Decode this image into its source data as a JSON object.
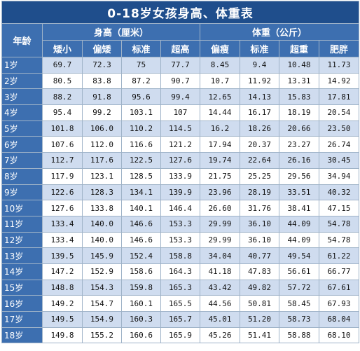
{
  "title": "0-18岁女孩身高、体重表",
  "headers": {
    "age": "年龄",
    "height_group": "身高（厘米）",
    "weight_group": "体重（公斤）",
    "height_cols": [
      "矮小",
      "偏矮",
      "标准",
      "超高"
    ],
    "weight_cols": [
      "偏瘦",
      "标准",
      "超重",
      "肥胖"
    ]
  },
  "rows": [
    {
      "age": "1岁",
      "h": [
        "69.7",
        "72.3",
        "75",
        "77.7"
      ],
      "w": [
        "8.45",
        "9.4",
        "10.48",
        "11.73"
      ]
    },
    {
      "age": "2岁",
      "h": [
        "80.5",
        "83.8",
        "87.2",
        "90.7"
      ],
      "w": [
        "10.7",
        "11.92",
        "13.31",
        "14.92"
      ]
    },
    {
      "age": "3岁",
      "h": [
        "88.2",
        "91.8",
        "95.6",
        "99.4"
      ],
      "w": [
        "12.65",
        "14.13",
        "15.83",
        "17.81"
      ]
    },
    {
      "age": "4岁",
      "h": [
        "95.4",
        "99.2",
        "103.1",
        "107"
      ],
      "w": [
        "14.44",
        "16.17",
        "18.19",
        "20.54"
      ]
    },
    {
      "age": "5岁",
      "h": [
        "101.8",
        "106.0",
        "110.2",
        "114.5"
      ],
      "w": [
        "16.2",
        "18.26",
        "20.66",
        "23.50"
      ]
    },
    {
      "age": "6岁",
      "h": [
        "107.6",
        "112.0",
        "116.6",
        "121.2"
      ],
      "w": [
        "17.94",
        "20.37",
        "23.27",
        "26.74"
      ]
    },
    {
      "age": "7岁",
      "h": [
        "112.7",
        "117.6",
        "122.5",
        "127.6"
      ],
      "w": [
        "19.74",
        "22.64",
        "26.16",
        "30.45"
      ]
    },
    {
      "age": "8岁",
      "h": [
        "117.9",
        "123.1",
        "128.5",
        "133.9"
      ],
      "w": [
        "21.75",
        "25.25",
        "29.56",
        "34.94"
      ]
    },
    {
      "age": "9岁",
      "h": [
        "122.6",
        "128.3",
        "134.1",
        "139.9"
      ],
      "w": [
        "23.96",
        "28.19",
        "33.51",
        "40.32"
      ]
    },
    {
      "age": "10岁",
      "h": [
        "127.6",
        "133.8",
        "140.1",
        "146.4"
      ],
      "w": [
        "26.60",
        "31.76",
        "38.41",
        "47.15"
      ]
    },
    {
      "age": "11岁",
      "h": [
        "133.4",
        "140.0",
        "146.6",
        "153.3"
      ],
      "w": [
        "29.99",
        "36.10",
        "44.09",
        "54.78"
      ]
    },
    {
      "age": "12岁",
      "h": [
        "133.4",
        "140.0",
        "146.6",
        "153.3"
      ],
      "w": [
        "29.99",
        "36.10",
        "44.09",
        "54.78"
      ]
    },
    {
      "age": "13岁",
      "h": [
        "139.5",
        "145.9",
        "152.4",
        "158.8"
      ],
      "w": [
        "34.04",
        "40.77",
        "49.54",
        "61.22"
      ]
    },
    {
      "age": "14岁",
      "h": [
        "147.2",
        "152.9",
        "158.6",
        "164.3"
      ],
      "w": [
        "41.18",
        "47.83",
        "56.61",
        "66.77"
      ]
    },
    {
      "age": "15岁",
      "h": [
        "148.8",
        "154.3",
        "159.8",
        "165.3"
      ],
      "w": [
        "43.42",
        "49.82",
        "57.72",
        "67.61"
      ]
    },
    {
      "age": "16岁",
      "h": [
        "149.2",
        "154.7",
        "160.1",
        "165.5"
      ],
      "w": [
        "44.56",
        "50.81",
        "58.45",
        "67.93"
      ]
    },
    {
      "age": "17岁",
      "h": [
        "149.5",
        "154.9",
        "160.3",
        "165.7"
      ],
      "w": [
        "45.01",
        "51.20",
        "58.73",
        "68.04"
      ]
    },
    {
      "age": "18岁",
      "h": [
        "149.8",
        "155.2",
        "160.6",
        "165.9"
      ],
      "w": [
        "45.26",
        "51.41",
        "58.88",
        "68.10"
      ]
    }
  ]
}
